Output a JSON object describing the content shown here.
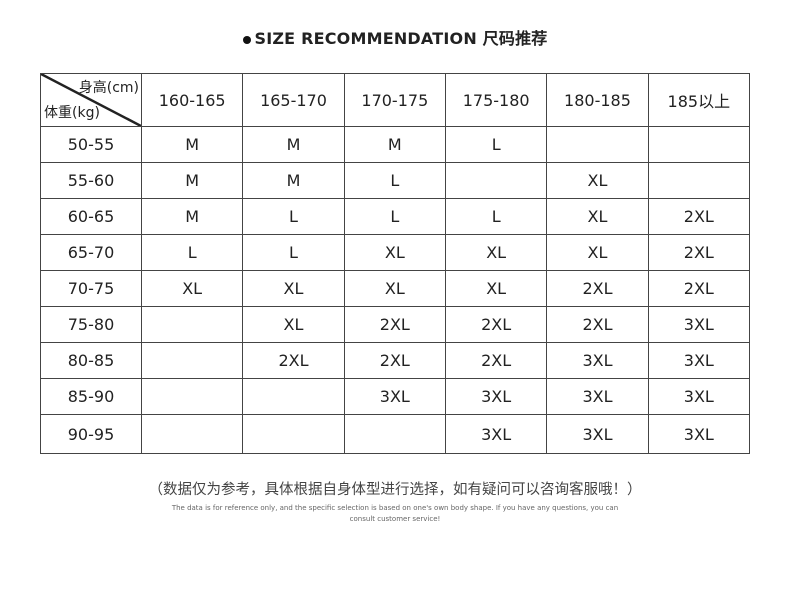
{
  "title": "SIZE RECOMMENDATION 尺码推荐",
  "corner": {
    "height_label": "身高(cm)",
    "weight_label": "体重(kg)"
  },
  "heights": [
    "160-165",
    "165-170",
    "170-175",
    "175-180",
    "180-185",
    "185以上"
  ],
  "rows": [
    {
      "weight": "50-55",
      "sizes": [
        "M",
        "M",
        "M",
        "L",
        "",
        ""
      ]
    },
    {
      "weight": "55-60",
      "sizes": [
        "M",
        "M",
        "L",
        "",
        "XL",
        ""
      ]
    },
    {
      "weight": "60-65",
      "sizes": [
        "M",
        "L",
        "L",
        "L",
        "XL",
        "2XL"
      ]
    },
    {
      "weight": "65-70",
      "sizes": [
        "L",
        "L",
        "XL",
        "XL",
        "XL",
        "2XL"
      ]
    },
    {
      "weight": "70-75",
      "sizes": [
        "XL",
        "XL",
        "XL",
        "XL",
        "2XL",
        "2XL"
      ]
    },
    {
      "weight": "75-80",
      "sizes": [
        "",
        "XL",
        "2XL",
        "2XL",
        "2XL",
        "3XL"
      ]
    },
    {
      "weight": "80-85",
      "sizes": [
        "",
        "2XL",
        "2XL",
        "2XL",
        "3XL",
        "3XL"
      ]
    },
    {
      "weight": "85-90",
      "sizes": [
        "",
        "",
        "3XL",
        "3XL",
        "3XL",
        "3XL"
      ]
    },
    {
      "weight": "90-95",
      "sizes": [
        "",
        "",
        "",
        "3XL",
        "3XL",
        "3XL"
      ]
    }
  ],
  "note_cn": "（数据仅为参考，具体根据自身体型进行选择，如有疑问可以咨询客服哦！）",
  "note_en": "The data is for reference only, and the specific selection is based on one's own body shape. If you have any questions, you can consult customer service!"
}
